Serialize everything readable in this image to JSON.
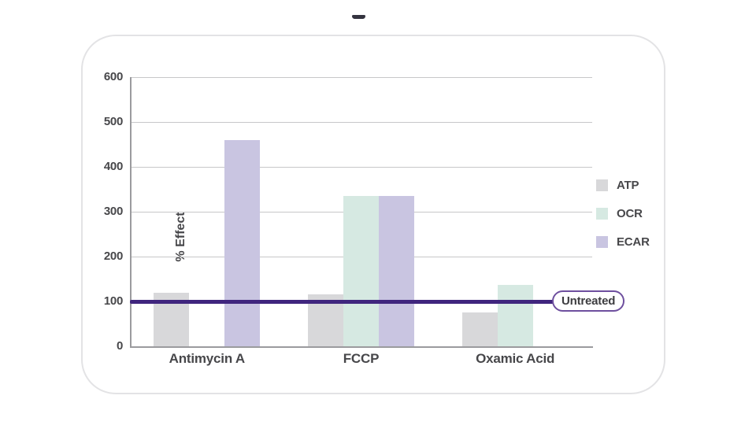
{
  "window": {
    "top_dash_icon": "minimize-dash"
  },
  "chart_data": {
    "type": "bar",
    "title": "",
    "xlabel": "",
    "ylabel": "% Effect",
    "categories": [
      "Antimycin A",
      "FCCP",
      "Oxamic Acid"
    ],
    "series": [
      {
        "name": "ATP",
        "color": "#d8d8da",
        "values": [
          120,
          115,
          75
        ]
      },
      {
        "name": "OCR",
        "color": "#d6e9e2",
        "values": [
          0,
          335,
          137
        ]
      },
      {
        "name": "ECAR",
        "color": "#c9c5e1",
        "values": [
          460,
          335,
          0
        ]
      }
    ],
    "ylim": [
      0,
      600
    ],
    "yticks": [
      0,
      100,
      200,
      300,
      400,
      500,
      600
    ],
    "grid": true,
    "legend_position": "right",
    "reference_line": {
      "value": 100,
      "label": "Untreated",
      "line_color": "#40267e",
      "pill_border_color": "#6e4f9e"
    },
    "text_color": "#47474a"
  }
}
